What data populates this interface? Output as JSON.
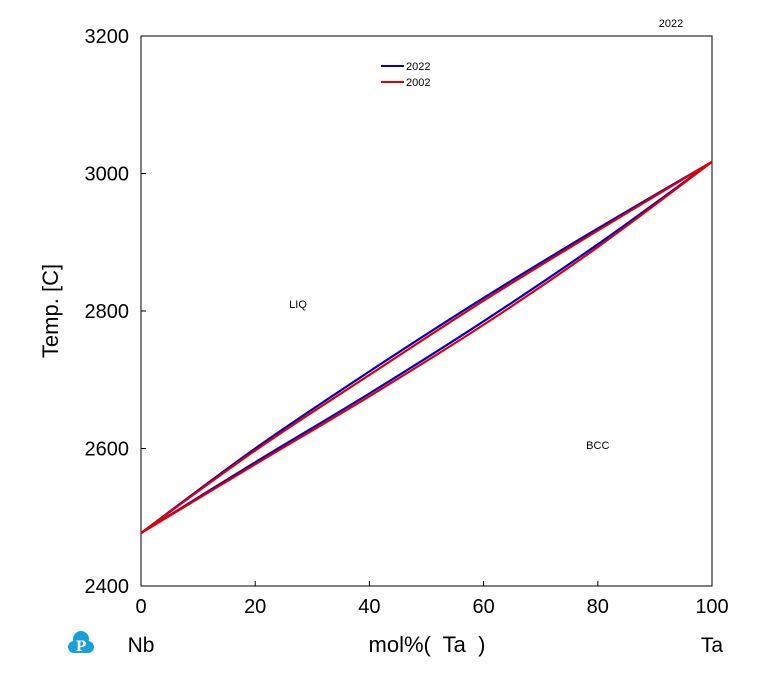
{
  "chart_data": {
    "type": "line",
    "title": "",
    "corner_label": "2022",
    "xlabel": "mol%(  Ta  )",
    "ylabel": "Temp.  [C]",
    "x_left_label": "Nb",
    "x_right_label": "Ta",
    "xlim": [
      0,
      100
    ],
    "ylim": [
      2400,
      3200
    ],
    "xticks": [
      0,
      20,
      40,
      60,
      80,
      100
    ],
    "yticks": [
      2400,
      2600,
      2800,
      3000,
      3200
    ],
    "grid": false,
    "legend_placement": "top-center",
    "phase_labels": [
      {
        "text": "LIQ",
        "x": 27.5,
        "y": 2810
      },
      {
        "text": "BCC",
        "x": 80.0,
        "y": 2605
      }
    ],
    "series": [
      {
        "name": "2022",
        "color": "#0000cc",
        "curves": [
          {
            "part": "liquidus",
            "x": [
              0,
              20,
              40,
              60,
              80,
              100
            ],
            "y": [
              2477,
              2600,
              2712,
              2819,
              2920,
              3017
            ]
          },
          {
            "part": "solidus",
            "x": [
              0,
              20,
              40,
              60,
              80,
              100
            ],
            "y": [
              2477,
              2580,
              2680,
              2785,
              2897,
              3017
            ]
          }
        ]
      },
      {
        "name": "2002",
        "color": "#e00000",
        "curves": [
          {
            "part": "liquidus",
            "x": [
              0,
              20,
              40,
              60,
              80,
              100
            ],
            "y": [
              2477,
              2597,
              2707,
              2815,
              2917,
              3017
            ]
          },
          {
            "part": "solidus",
            "x": [
              0,
              20,
              40,
              60,
              80,
              100
            ],
            "y": [
              2477,
              2577,
              2676,
              2780,
              2893,
              3017
            ]
          }
        ]
      }
    ]
  },
  "logo": {
    "name": "pandat-logo",
    "color": "#1aa0d8",
    "letter": "P"
  }
}
